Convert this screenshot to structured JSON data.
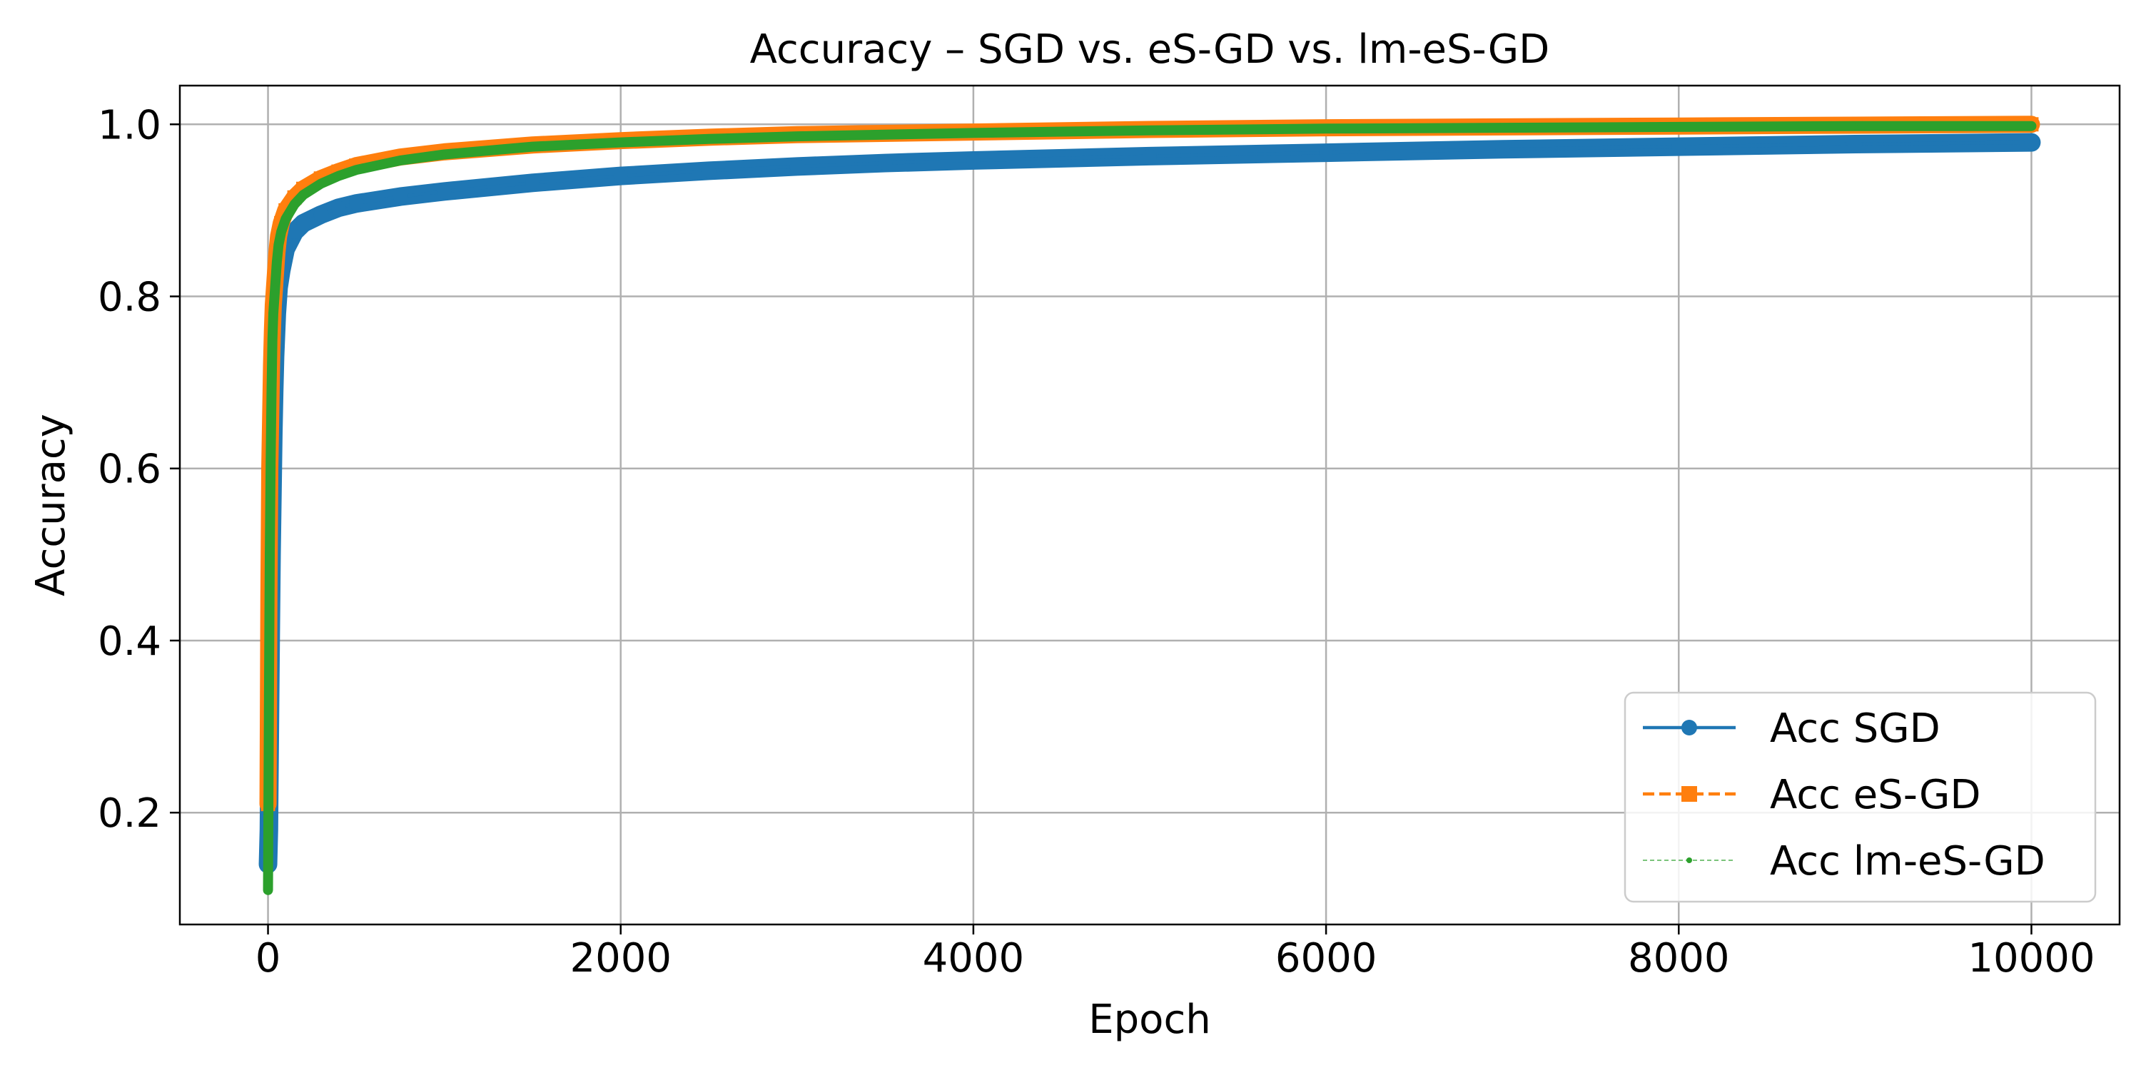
{
  "chart_data": {
    "type": "line",
    "title": "Accuracy – SGD vs. eS-GD vs. lm-eS-GD",
    "xlabel": "Epoch",
    "ylabel": "Accuracy",
    "xlim": [
      -500,
      10500
    ],
    "ylim": [
      0.07,
      1.045
    ],
    "grid": true,
    "legend_position": "lower-right",
    "x_ticks": [
      0,
      2000,
      4000,
      6000,
      8000,
      10000
    ],
    "x_tick_labels": [
      "0",
      "2000",
      "4000",
      "6000",
      "8000",
      "10000"
    ],
    "y_ticks": [
      0.2,
      0.4,
      0.6,
      0.8,
      1.0
    ],
    "y_tick_labels": [
      "0.2",
      "0.4",
      "0.6",
      "0.8",
      "1.0"
    ],
    "series": [
      {
        "name": "Acc SGD",
        "color": "#1f77b4",
        "line_style": "solid",
        "marker": "circle",
        "x": [
          0,
          5,
          10,
          15,
          20,
          25,
          30,
          35,
          40,
          50,
          60,
          75,
          100,
          150,
          200,
          300,
          400,
          500,
          750,
          1000,
          1500,
          2000,
          2500,
          3000,
          3500,
          4000,
          5000,
          6000,
          7000,
          8000,
          9000,
          10000
        ],
        "y": [
          0.14,
          0.18,
          0.29,
          0.4,
          0.5,
          0.57,
          0.64,
          0.69,
          0.73,
          0.78,
          0.81,
          0.83,
          0.855,
          0.875,
          0.885,
          0.895,
          0.903,
          0.908,
          0.916,
          0.922,
          0.932,
          0.94,
          0.946,
          0.951,
          0.955,
          0.958,
          0.963,
          0.967,
          0.971,
          0.974,
          0.977,
          0.979
        ]
      },
      {
        "name": "Acc eS-GD",
        "color": "#ff7f0e",
        "line_style": "dashed",
        "marker": "square",
        "x": [
          0,
          5,
          10,
          15,
          20,
          25,
          30,
          40,
          50,
          60,
          75,
          100,
          150,
          200,
          300,
          400,
          500,
          750,
          1000,
          1500,
          2000,
          2500,
          3000,
          4000,
          5000,
          6000,
          7000,
          8000,
          9000,
          10000
        ],
        "y": [
          0.21,
          0.45,
          0.6,
          0.66,
          0.72,
          0.76,
          0.79,
          0.82,
          0.85,
          0.87,
          0.885,
          0.9,
          0.915,
          0.925,
          0.937,
          0.945,
          0.952,
          0.962,
          0.968,
          0.976,
          0.981,
          0.985,
          0.988,
          0.991,
          0.994,
          0.996,
          0.997,
          0.998,
          0.999,
          1.0
        ]
      },
      {
        "name": "Acc lm-eS-GD",
        "color": "#2ca02c",
        "line_style": "dotted",
        "marker": "point",
        "x": [
          0,
          5,
          10,
          15,
          20,
          25,
          30,
          40,
          50,
          60,
          75,
          100,
          150,
          200,
          300,
          400,
          500,
          750,
          1000,
          1500,
          2000,
          2500,
          3000,
          4000,
          5000,
          6000,
          7000,
          8000,
          9000,
          10000
        ],
        "y": [
          0.11,
          0.32,
          0.5,
          0.61,
          0.69,
          0.75,
          0.78,
          0.81,
          0.84,
          0.86,
          0.875,
          0.89,
          0.907,
          0.918,
          0.931,
          0.94,
          0.947,
          0.958,
          0.965,
          0.974,
          0.979,
          0.983,
          0.986,
          0.99,
          0.993,
          0.995,
          0.996,
          0.997,
          0.998,
          0.998
        ]
      }
    ]
  }
}
